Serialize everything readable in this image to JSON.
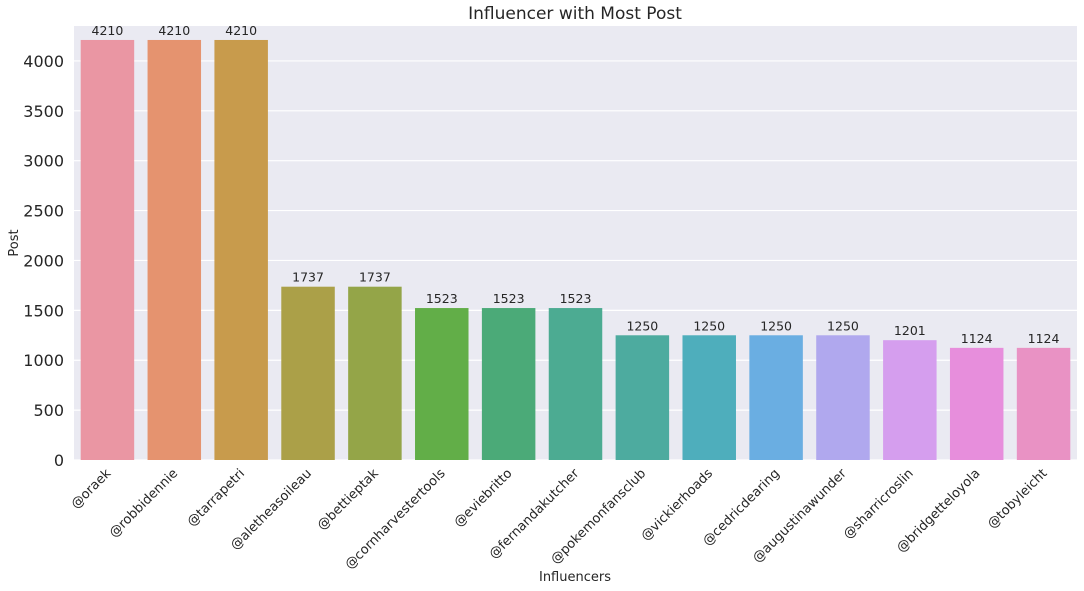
{
  "chart_data": {
    "type": "bar",
    "title": "Influencer with Most Post",
    "xlabel": "Influencers",
    "ylabel": "Post",
    "ylim": [
      0,
      4350
    ],
    "yticks": [
      0,
      500,
      1000,
      1500,
      2000,
      2500,
      3000,
      3500,
      4000
    ],
    "grid": true,
    "categories": [
      "@oraek",
      "@robbidennie",
      "@tarrapetri",
      "@aletheasoileau",
      "@bettieptak",
      "@cornharvestertools",
      "@eviebritto",
      "@fernandakutcher",
      "@pokemonfansclub",
      "@vickierhoads",
      "@cedricdearing",
      "@augustinawunder",
      "@sharricroslin",
      "@bridgetteloyola",
      "@tobyleicht"
    ],
    "values": [
      4210,
      4210,
      4210,
      1737,
      1737,
      1523,
      1523,
      1523,
      1250,
      1250,
      1250,
      1250,
      1201,
      1124,
      1124
    ],
    "data_labels": [
      "4210",
      "4210",
      "4210",
      "1737",
      "1737",
      "1523",
      "1523",
      "1523",
      "1250",
      "1250",
      "1250",
      "1250",
      "1201",
      "1124",
      "1124"
    ],
    "colors": [
      "#ea96a3",
      "#e5936f",
      "#c89b4c",
      "#aba048",
      "#94a548",
      "#62ae48",
      "#4baa78",
      "#4cab92",
      "#4dab9f",
      "#4eaebc",
      "#6aaee2",
      "#b0a8ee",
      "#d59eee",
      "#e78edc",
      "#e992c4"
    ]
  }
}
